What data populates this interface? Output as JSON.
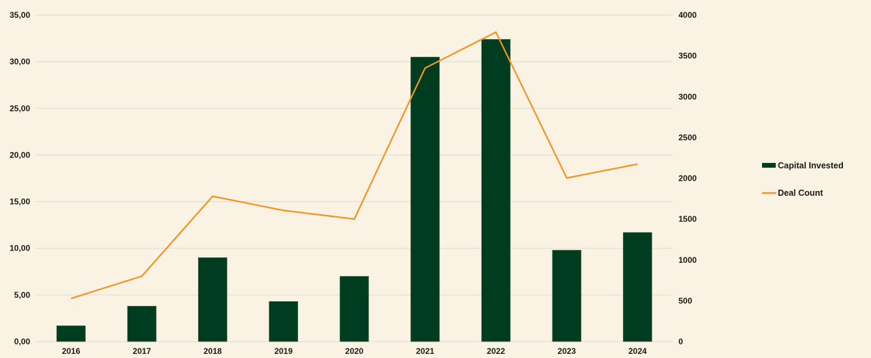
{
  "chart_data": {
    "type": "bar+line",
    "title": "",
    "xlabel": "",
    "ylabel": "",
    "categories": [
      "2016",
      "2017",
      "2018",
      "2019",
      "2020",
      "2021",
      "2022",
      "2023",
      "2024"
    ],
    "series": [
      {
        "name": "Capital Invested",
        "type": "bar",
        "axis": "left",
        "color": "#003d20",
        "values": [
          1.7,
          3.8,
          9.0,
          4.3,
          7.0,
          30.5,
          32.4,
          9.8,
          11.7
        ]
      },
      {
        "name": "Deal Count",
        "type": "line",
        "axis": "right",
        "color": "#f7931e",
        "values": [
          528,
          802,
          1780,
          1607,
          1501,
          3351,
          3790,
          2004,
          2174
        ]
      }
    ],
    "y_left": {
      "range": [
        0,
        35
      ],
      "ticks": [
        "0,00",
        "5,00",
        "10,00",
        "15,00",
        "20,00",
        "25,00",
        "30,00",
        "35,00"
      ]
    },
    "y_right": {
      "range": [
        0,
        4000
      ],
      "ticks": [
        "0",
        "500",
        "1000",
        "1500",
        "2000",
        "2500",
        "3000",
        "3500",
        "4000"
      ]
    },
    "grid": true,
    "legend": "right",
    "background": "#faf2e2"
  }
}
